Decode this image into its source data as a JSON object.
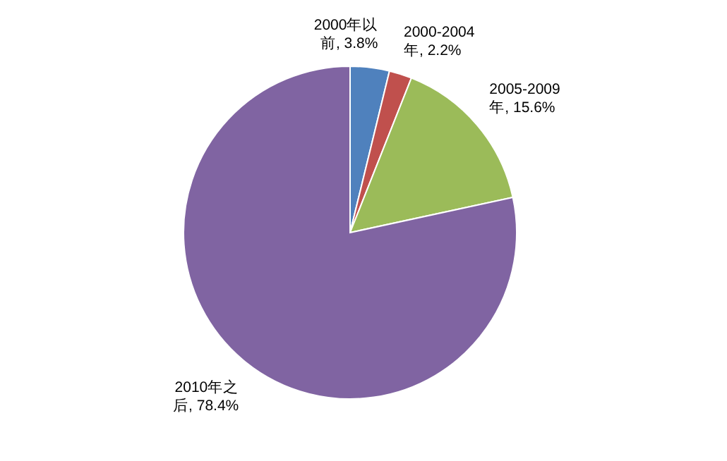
{
  "chart_data": {
    "type": "pie",
    "categories": [
      "2000年以前",
      "2000-2004年",
      "2005-2009年",
      "2010年之后"
    ],
    "values": [
      3.8,
      2.2,
      15.6,
      78.4
    ],
    "value_labels": [
      ", 3.8%",
      ", 2.2%",
      ", 15.6%",
      ", 78.4%"
    ],
    "colors": [
      "#4f81bd",
      "#c0504d",
      "#9bbb59",
      "#8064a2"
    ]
  }
}
